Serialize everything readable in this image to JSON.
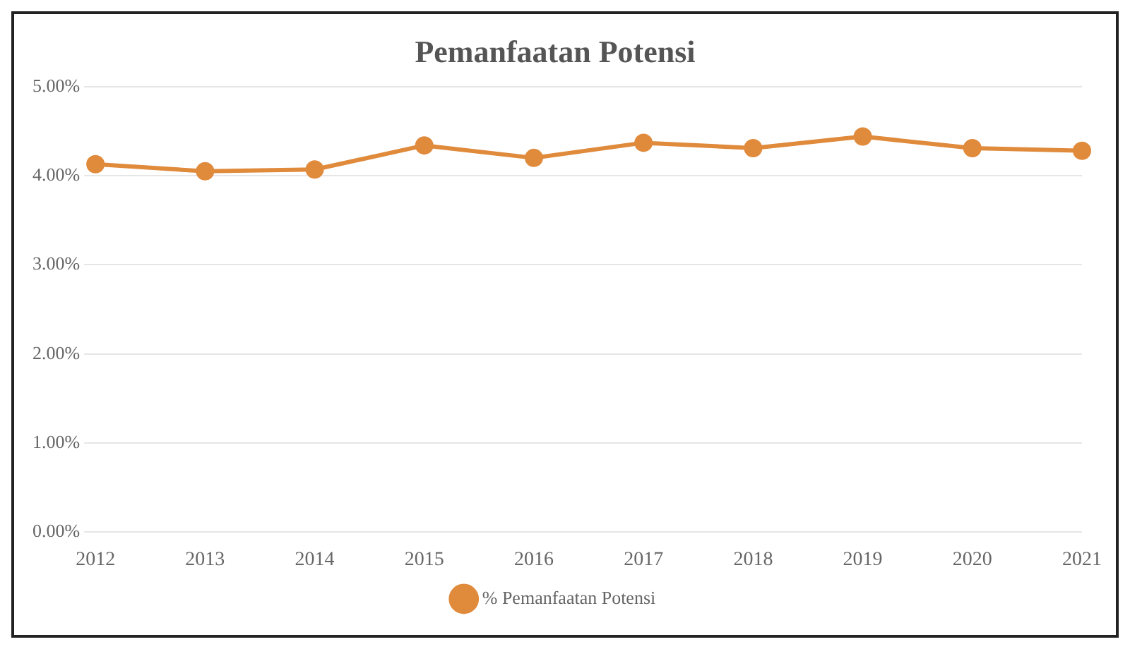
{
  "chart_data": {
    "type": "line",
    "title": "Pemanfaatan Potensi",
    "categories": [
      "2012",
      "2013",
      "2014",
      "2015",
      "2016",
      "2017",
      "2018",
      "2019",
      "2020",
      "2021"
    ],
    "series": [
      {
        "name": "% Pemanfaatan Potensi",
        "color": "#e08a3c",
        "values": [
          4.13,
          4.05,
          4.07,
          4.34,
          4.2,
          4.37,
          4.31,
          4.44,
          4.31,
          4.28
        ]
      }
    ],
    "ylim": [
      0,
      5
    ],
    "yticks": [
      {
        "value": 0,
        "label": "0.00%"
      },
      {
        "value": 1,
        "label": "1.00%"
      },
      {
        "value": 2,
        "label": "2.00%"
      },
      {
        "value": 3,
        "label": "3.00%"
      },
      {
        "value": 4,
        "label": "4.00%"
      },
      {
        "value": 5,
        "label": "5.00%"
      }
    ],
    "grid": "y",
    "legend": "bottom",
    "marker": "circle",
    "line_style": "solid"
  }
}
